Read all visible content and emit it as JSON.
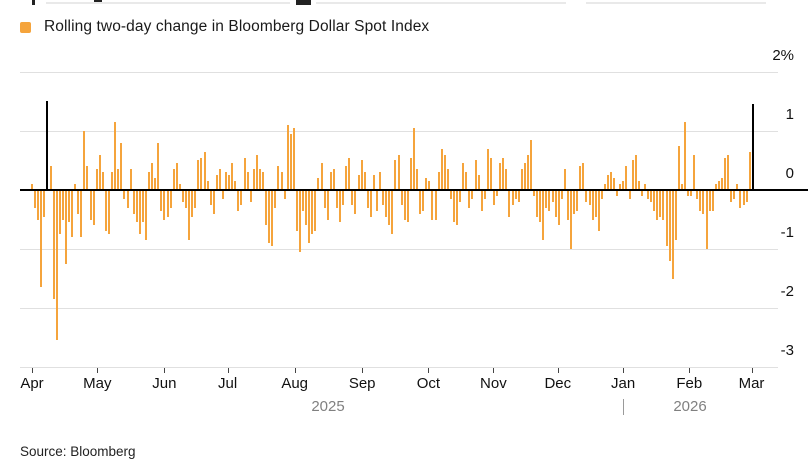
{
  "legend": {
    "label": "Rolling two-day change in Bloomberg Dollar Spot Index",
    "marker_color": "#F5A43C"
  },
  "source": {
    "text": "Source: Bloomberg"
  },
  "colors": {
    "bar_orange": "#F5A43C",
    "bar_highlight_black": "#000000",
    "gridline": "#E0E0E0",
    "axis_text": "#111111",
    "year_text": "#808080"
  },
  "chart_data": {
    "type": "bar",
    "title": "Rolling two-day change in Bloomberg Dollar Spot Index",
    "unit": "%",
    "x_range": "Apr 2025 - Mar 2026",
    "ylim": [
      -3,
      2
    ],
    "yticks": [
      "2%",
      "1",
      "0",
      "-1",
      "-2",
      "-3"
    ],
    "ytick_values": [
      2,
      1,
      0,
      -1,
      -2,
      -3
    ],
    "grid": true,
    "legend_position": "top-left",
    "bar_color": "#F5A43C",
    "highlight_color": "#000000",
    "highlight_indices": [
      5,
      234
    ],
    "x_axis": {
      "months": [
        "Apr",
        "May",
        "Jun",
        "Jul",
        "Aug",
        "Sep",
        "Oct",
        "Nov",
        "Dec",
        "Jan",
        "Feb",
        "Mar"
      ],
      "month_tick_indices": [
        0,
        21.2,
        43,
        63.5,
        85.3,
        107.2,
        128.7,
        149.8,
        170.7,
        191.9,
        213.4,
        233.6
      ],
      "years": [
        {
          "label": "2025"
        },
        {
          "label": "2026"
        }
      ]
    },
    "values": [
      0.1,
      -0.3,
      -0.5,
      -1.65,
      -0.45,
      1.5,
      0.4,
      -1.85,
      -2.55,
      -0.75,
      -0.5,
      -1.25,
      -0.55,
      -0.8,
      0.1,
      -0.4,
      -0.8,
      1.0,
      0.4,
      -0.5,
      -0.6,
      0.35,
      0.6,
      0.3,
      -0.7,
      -0.75,
      0.3,
      1.15,
      0.35,
      0.8,
      -0.15,
      -0.3,
      0.35,
      -0.4,
      -0.55,
      -0.75,
      -0.55,
      -0.85,
      0.3,
      0.45,
      0.2,
      0.8,
      -0.35,
      -0.5,
      -0.45,
      -0.3,
      0.35,
      0.45,
      0.1,
      -0.2,
      -0.3,
      -0.85,
      -0.45,
      -0.3,
      0.5,
      0.55,
      0.65,
      0.15,
      -0.25,
      -0.4,
      0.25,
      0.35,
      -0.15,
      0.3,
      0.25,
      0.45,
      0.15,
      -0.35,
      -0.25,
      0.55,
      0.3,
      -0.2,
      0.35,
      0.6,
      0.35,
      0.3,
      -0.6,
      -0.9,
      -0.95,
      -0.3,
      0.4,
      0.3,
      -0.15,
      1.1,
      0.95,
      1.05,
      -0.7,
      -1.05,
      -0.35,
      -0.6,
      -0.9,
      -0.75,
      -0.7,
      0.2,
      0.45,
      -0.3,
      -0.5,
      0.3,
      0.35,
      -0.3,
      -0.55,
      -0.25,
      0.4,
      0.55,
      -0.25,
      -0.4,
      0.25,
      0.5,
      0.3,
      -0.3,
      -0.45,
      0.25,
      -0.35,
      0.3,
      -0.25,
      -0.45,
      -0.6,
      -0.75,
      0.5,
      0.6,
      -0.25,
      -0.5,
      -0.55,
      0.55,
      1.05,
      0.35,
      -0.4,
      -0.35,
      0.2,
      0.15,
      -0.5,
      -0.5,
      0.3,
      0.7,
      0.6,
      0.35,
      -0.15,
      -0.55,
      -0.6,
      -0.2,
      0.45,
      0.3,
      -0.3,
      -0.15,
      0.5,
      0.25,
      -0.35,
      -0.15,
      0.7,
      0.55,
      -0.25,
      -0.1,
      0.45,
      0.55,
      0.35,
      -0.45,
      -0.25,
      -0.15,
      -0.2,
      0.35,
      0.45,
      0.6,
      0.85,
      -0.1,
      -0.45,
      -0.55,
      -0.85,
      -0.3,
      -0.35,
      -0.2,
      -0.45,
      -0.6,
      -0.15,
      0.35,
      -0.5,
      -1.0,
      -0.4,
      -0.35,
      0.4,
      0.45,
      -0.2,
      -0.25,
      -0.5,
      -0.45,
      -0.7,
      -0.15,
      0.1,
      0.25,
      0.3,
      0.2,
      -0.1,
      0.1,
      0.15,
      0.4,
      -0.15,
      0.5,
      0.6,
      0.15,
      -0.1,
      0.1,
      -0.15,
      -0.2,
      -0.35,
      -0.5,
      -0.45,
      -0.5,
      -0.95,
      -1.2,
      -1.5,
      -0.85,
      0.75,
      0.1,
      1.15,
      -0.1,
      -0.1,
      0.6,
      -0.15,
      -0.35,
      -0.4,
      -1.0,
      -0.35,
      -0.35,
      0.1,
      0.15,
      0.2,
      0.55,
      0.6,
      -0.2,
      -0.15,
      0.1,
      -0.3,
      -0.25,
      -0.2,
      0.65,
      1.45
    ]
  }
}
